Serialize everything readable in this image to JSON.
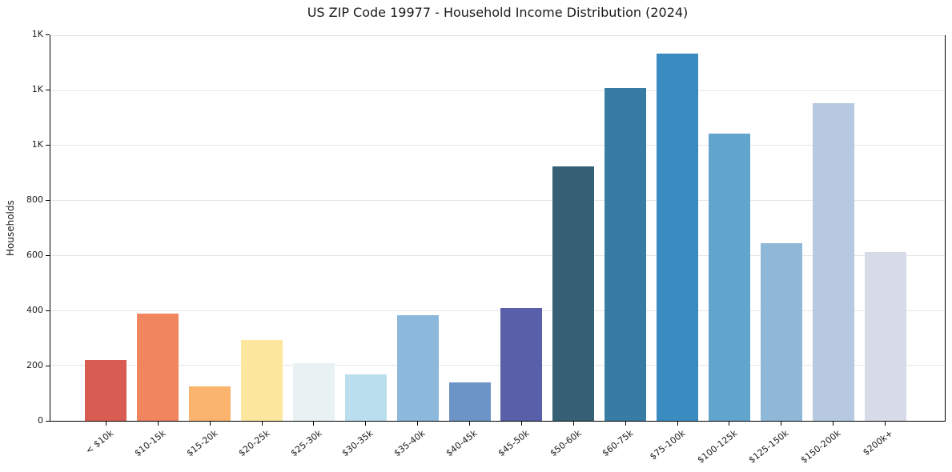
{
  "chart_data": {
    "type": "bar",
    "title": "US ZIP Code 19977 - Household Income Distribution (2024)",
    "xlabel": "",
    "ylabel": "Households",
    "categories": [
      "< $10k",
      "$10-15k",
      "$15-20k",
      "$20-25k",
      "$25-30k",
      "$30-35k",
      "$35-40k",
      "$40-45k",
      "$45-50k",
      "$50-60k",
      "$60-75k",
      "$75-100k",
      "$100-125k",
      "$125-150k",
      "$150-200k",
      "$200k+"
    ],
    "values": [
      220,
      390,
      125,
      295,
      210,
      170,
      385,
      140,
      410,
      925,
      1210,
      1335,
      1045,
      645,
      1155,
      615
    ],
    "bar_colors": [
      "#d85c52",
      "#f0855f",
      "#fab46e",
      "#fde69e",
      "#e8f2f3",
      "#bbdeee",
      "#8cb8dc",
      "#6d94c7",
      "#5a5fa9",
      "#356076",
      "#377ca3",
      "#3a8cc0",
      "#61a5cc",
      "#8fb8d8",
      "#b7c9e0",
      "#d7dae7"
    ],
    "ylim": [
      0,
      1400
    ],
    "yticks": [
      {
        "value": 0,
        "label": "0"
      },
      {
        "value": 200,
        "label": "200"
      },
      {
        "value": 400,
        "label": "400"
      },
      {
        "value": 600,
        "label": "600"
      },
      {
        "value": 800,
        "label": "800"
      },
      {
        "value": 1000,
        "label": "1K"
      },
      {
        "value": 1200,
        "label": "1K"
      },
      {
        "value": 1400,
        "label": "1K"
      }
    ],
    "grid": "horizontal",
    "legend": "none"
  },
  "colors": {
    "background": "#ffffff",
    "grid": "#e6e6e6",
    "spine": "#000000",
    "text": "#1a1a1a"
  }
}
